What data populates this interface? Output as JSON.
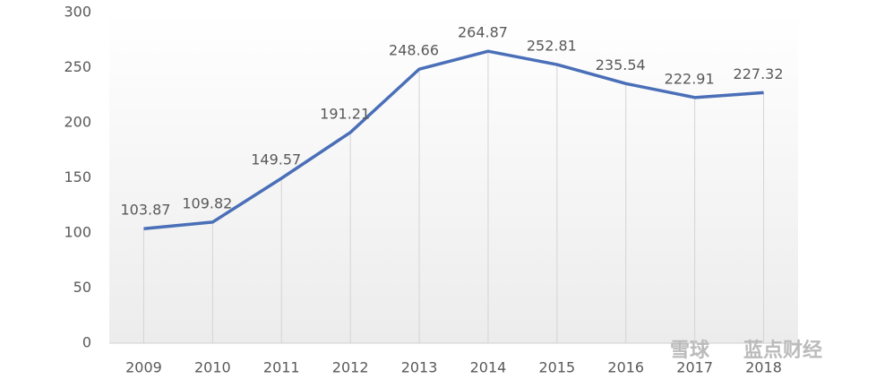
{
  "chart_data": {
    "type": "line",
    "categories": [
      "2009",
      "2010",
      "2011",
      "2012",
      "2013",
      "2014",
      "2015",
      "2016",
      "2017",
      "2018"
    ],
    "series": [
      {
        "color": "#4a6fb8",
        "values": [
          103.87,
          109.82,
          149.57,
          191.21,
          248.66,
          264.87,
          252.81,
          235.54,
          222.91,
          227.32
        ]
      }
    ],
    "ylim": [
      0,
      300
    ],
    "yticks": [
      0,
      50,
      100,
      150,
      200,
      250,
      300
    ],
    "drop_lines": true
  },
  "watermark": [
    "雪球",
    "蓝点财经"
  ]
}
